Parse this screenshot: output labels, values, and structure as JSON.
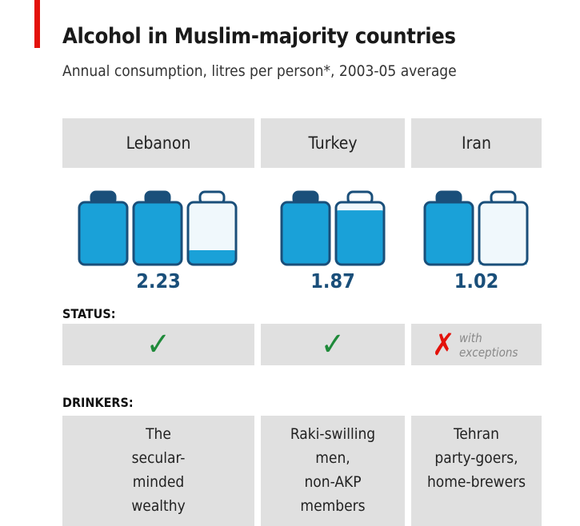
{
  "title": "Alcohol in Muslim-majority countries",
  "subtitle": "Annual consumption, litres per person*, 2003-05 average",
  "colors": {
    "accent_red": "#e3120b",
    "bottle_fill": "#1aa1d8",
    "bottle_empty": "#f0f8fc",
    "bottle_outline": "#1a4f7a",
    "value_text": "#1a4f7a",
    "check_green": "#1f8a3a",
    "box_grey": "#e0e0e0"
  },
  "sections": {
    "status_label": "STATUS:",
    "drinkers_label": "DRINKERS:"
  },
  "countries": [
    {
      "name": "Lebanon",
      "value_label": "2.23",
      "status_icon": "check-icon",
      "drinkers": "The\nsecular-\nminded\nwealthy"
    },
    {
      "name": "Turkey",
      "value_label": "1.87",
      "status_icon": "check-icon",
      "drinkers": "Raki-swilling\nmen,\nnon-AKP\nmembers"
    },
    {
      "name": "Iran",
      "value_label": "1.02",
      "status_icon": "cross-icon",
      "status_note": "with\nexceptions",
      "drinkers": "Tehran\nparty-goers,\nhome-brewers"
    }
  ],
  "chart_data": {
    "type": "bar",
    "title": "Alcohol in Muslim-majority countries",
    "subtitle": "Annual consumption, litres per person*, 2003-05 average",
    "categories": [
      "Lebanon",
      "Turkey",
      "Iran"
    ],
    "values": [
      2.23,
      1.87,
      1.02
    ],
    "units": "litres per person",
    "mark": "bottle-icons, 1 bottle = 1 litre"
  }
}
